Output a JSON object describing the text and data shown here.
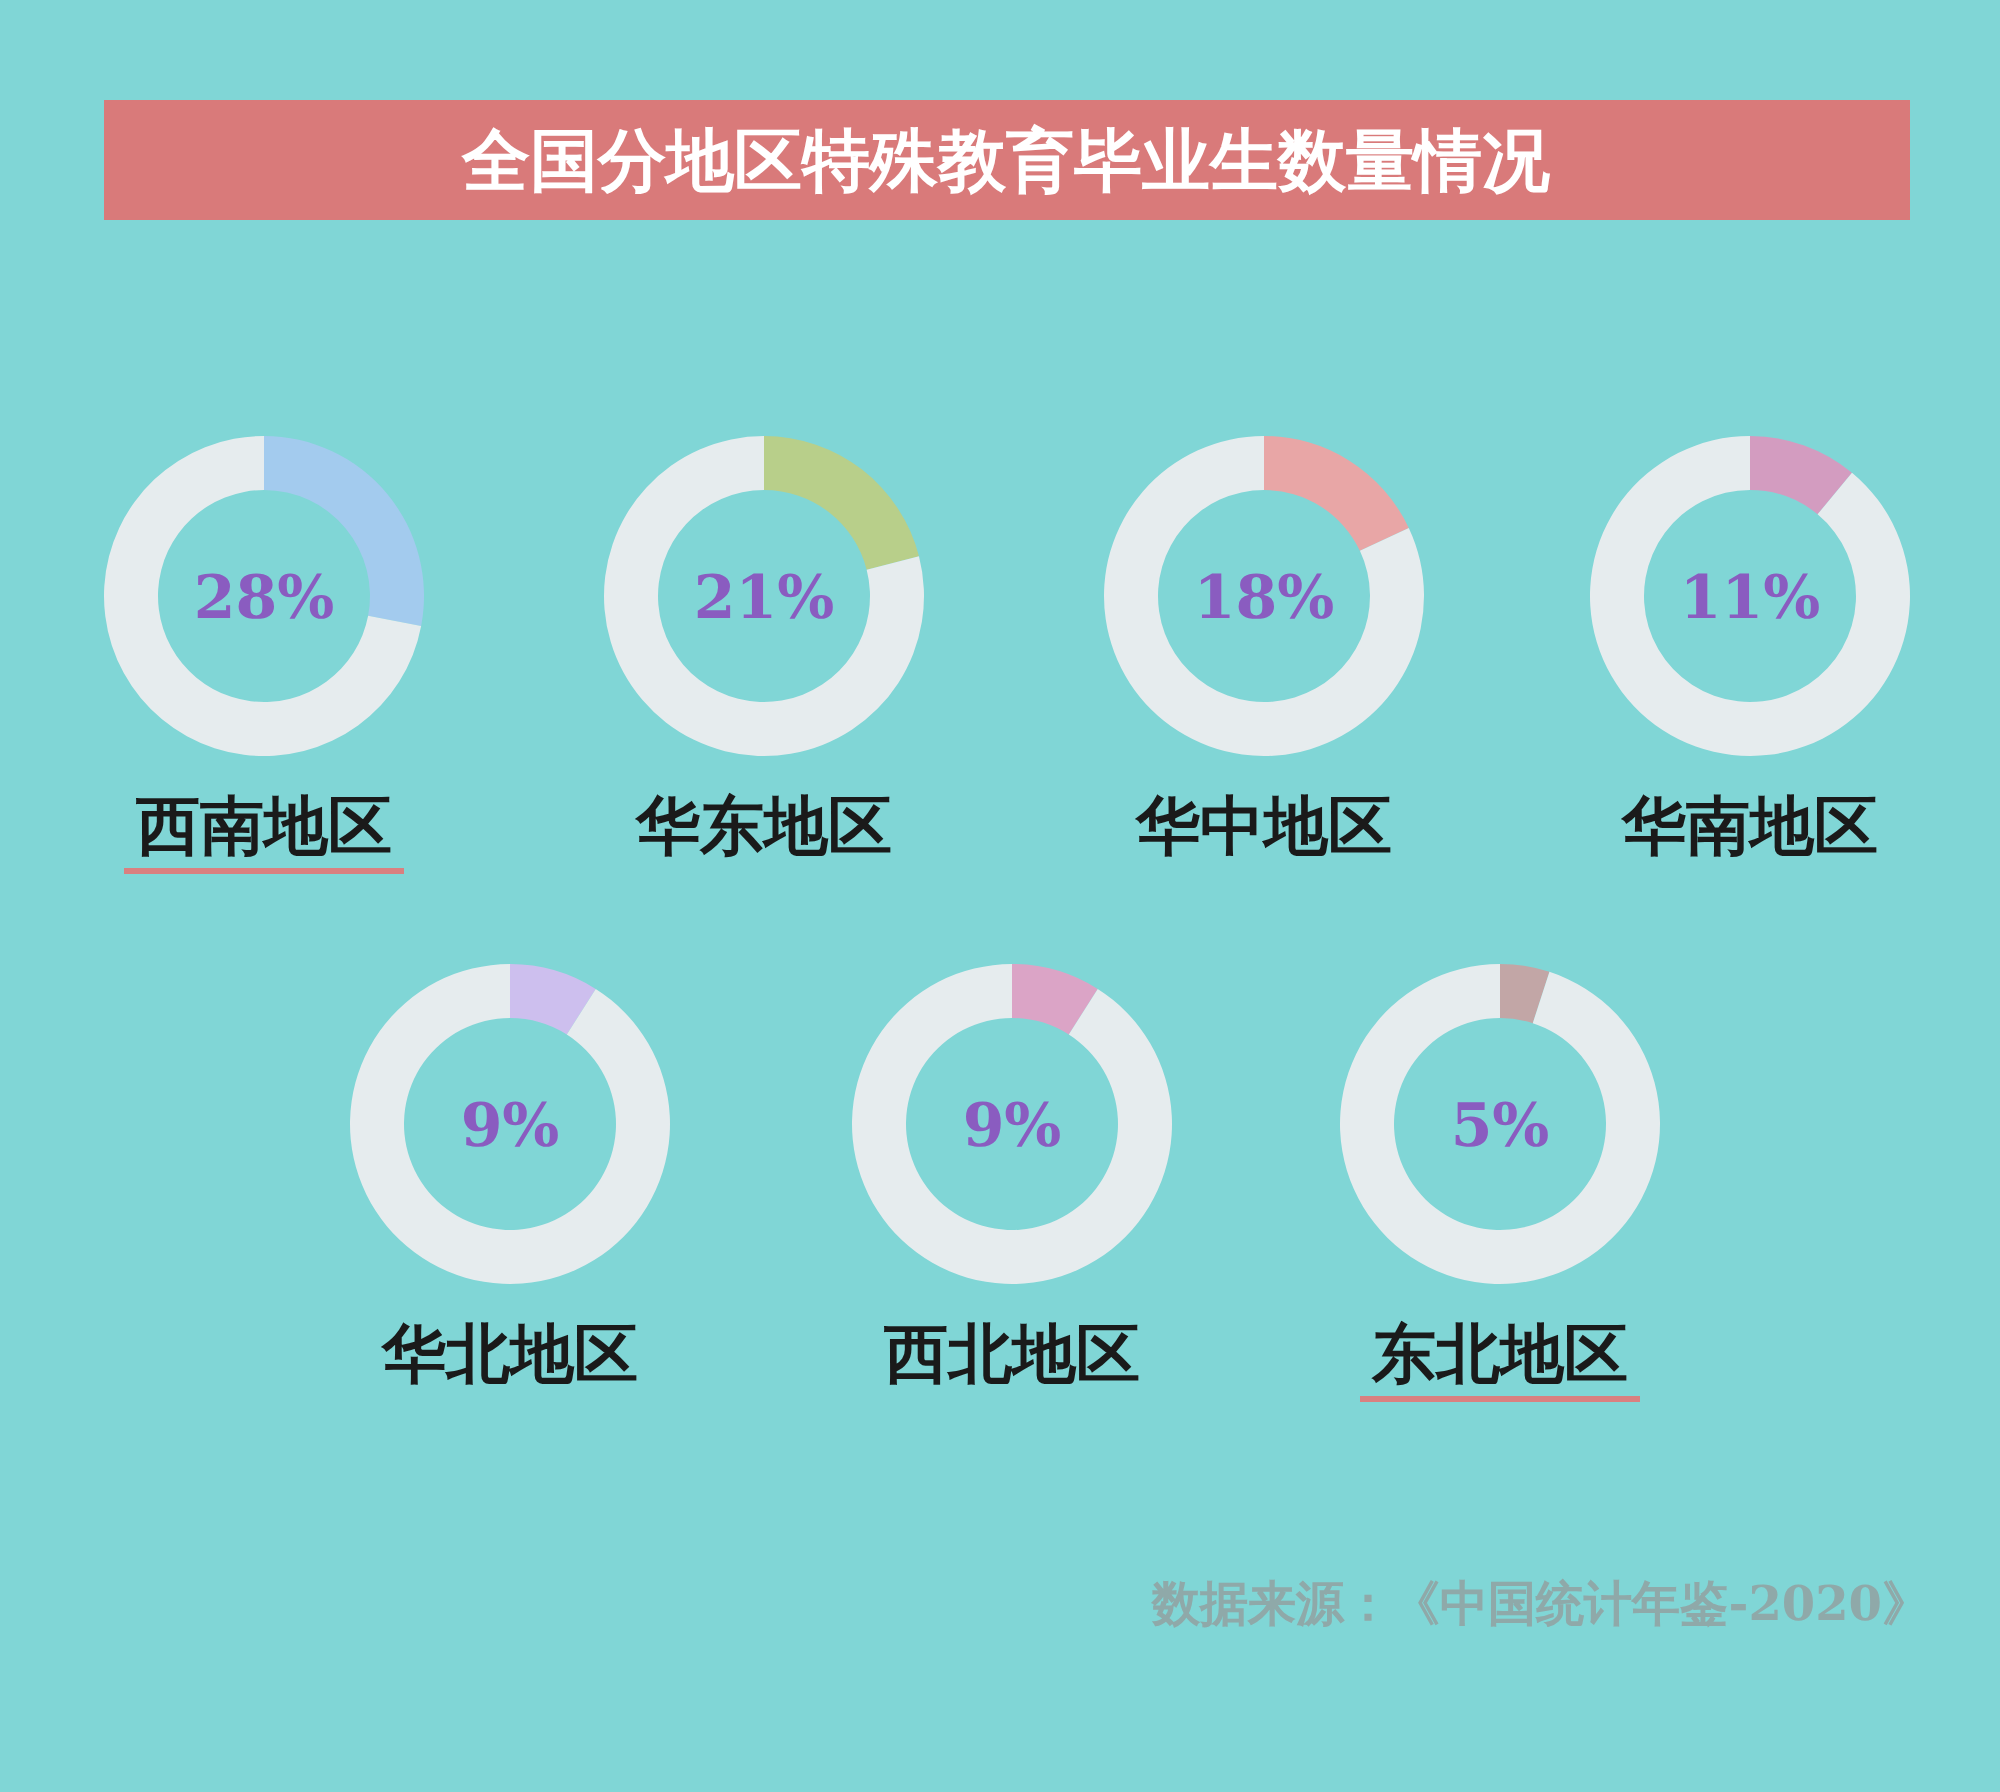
{
  "chart_data": [
    {
      "type": "other",
      "title": "全国分地区特殊教育毕业生数量情况",
      "annotations": [
        "数据来源：《中国统计年鉴-2020》"
      ]
    },
    {
      "type": "donut",
      "title": "西南地区",
      "categories": [
        null,
        null
      ],
      "values": [
        28,
        72
      ],
      "colors": [
        "#a3cbee",
        "#e6ecee"
      ],
      "annotations": [
        "28%"
      ]
    },
    {
      "type": "donut",
      "title": "华东地区",
      "categories": [
        null,
        null
      ],
      "values": [
        21,
        79
      ],
      "colors": [
        "#b8cf8a",
        "#e6ecee"
      ],
      "annotations": [
        "21%"
      ]
    },
    {
      "type": "donut",
      "title": "华中地区",
      "categories": [
        null,
        null
      ],
      "values": [
        18,
        82
      ],
      "colors": [
        "#e8a6a6",
        "#e6ecee"
      ],
      "annotations": [
        "18%"
      ]
    },
    {
      "type": "donut",
      "title": "华南地区",
      "categories": [
        null,
        null
      ],
      "values": [
        11,
        89
      ],
      "colors": [
        "#d39cc0",
        "#e6ecee"
      ],
      "annotations": [
        "11%"
      ]
    },
    {
      "type": "donut",
      "title": "华北地区",
      "categories": [
        null,
        null
      ],
      "values": [
        9,
        91
      ],
      "colors": [
        "#cdbfee",
        "#e6ecee"
      ],
      "annotations": [
        "9%"
      ]
    },
    {
      "type": "donut",
      "title": "西北地区",
      "categories": [
        null,
        null
      ],
      "values": [
        9,
        91
      ],
      "colors": [
        "#dba4c6",
        "#e6ecee"
      ],
      "annotations": [
        "9%"
      ]
    },
    {
      "type": "donut",
      "title": "东北地区",
      "categories": [
        null,
        null
      ],
      "values": [
        5,
        95
      ],
      "colors": [
        "#c2a6a6",
        "#e6ecee"
      ],
      "annotations": [
        "5%"
      ]
    }
  ]
}
